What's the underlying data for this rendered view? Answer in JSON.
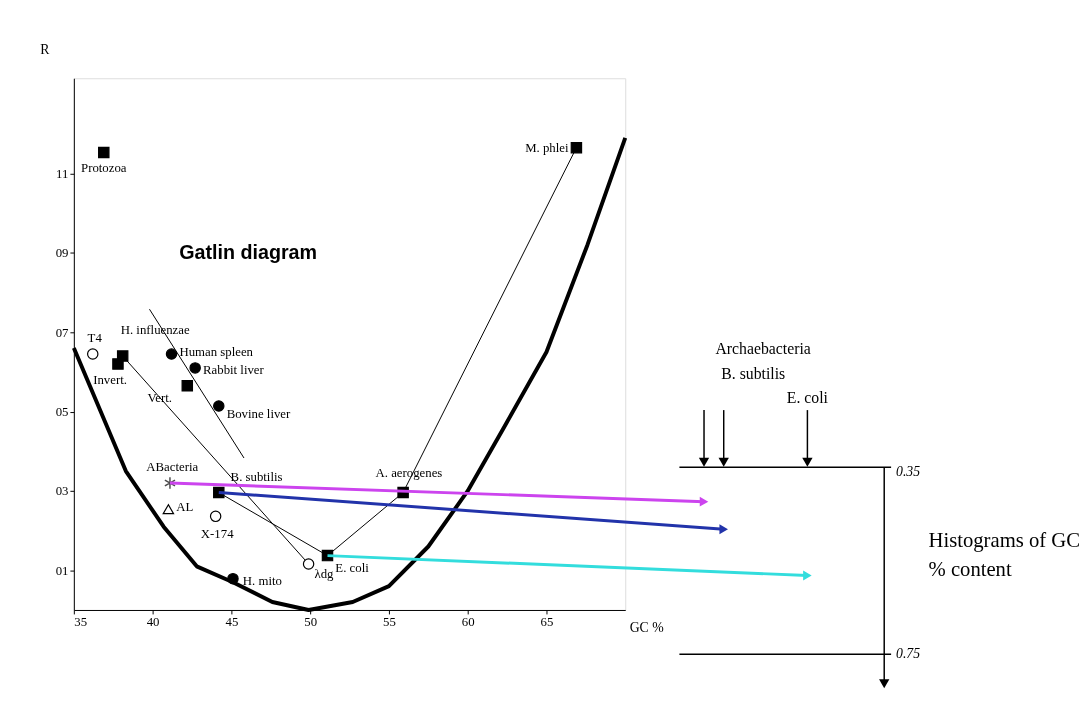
{
  "chart_data": {
    "type": "scatter",
    "title": "Gatlin diagram",
    "xlabel": "GC %",
    "ylabel": "R",
    "xlim": [
      35,
      70
    ],
    "ylim": [
      0,
      13.4
    ],
    "xticks": [
      35,
      40,
      45,
      50,
      55,
      60,
      65
    ],
    "yticks": [
      {
        "value": 1,
        "label": "01"
      },
      {
        "value": 3,
        "label": "03"
      },
      {
        "value": 5,
        "label": "05"
      },
      {
        "value": 7,
        "label": "07"
      },
      {
        "value": 9,
        "label": "09"
      },
      11
    ],
    "grid": false,
    "series": [
      {
        "type": "line",
        "marker": "none",
        "color": "#000000",
        "x": [
          35,
          38.3,
          40.7,
          42.8,
          45.1,
          47.6,
          49.9,
          52.7,
          55.0,
          57.5,
          60.0,
          62.3,
          65.0,
          67.6,
          70.0
        ],
        "values": [
          6.6,
          3.5,
          2.1,
          1.1,
          0.7,
          0.2,
          0.0,
          0.2,
          0.6,
          1.6,
          3.0,
          4.6,
          6.5,
          9.2,
          11.9
        ]
      },
      {
        "type": "line",
        "marker": "none",
        "color": "#000000",
        "x": [
          66.9,
          55.9,
          51.1
        ],
        "values": [
          11.65,
          2.96,
          1.37
        ]
      },
      {
        "type": "line",
        "marker": "none",
        "color": "#000000",
        "x": [
          38.1,
          49.9
        ],
        "values": [
          6.4,
          1.16
        ]
      },
      {
        "type": "line",
        "marker": "none",
        "color": "#000000",
        "x": [
          44.2,
          51.1
        ],
        "values": [
          2.96,
          1.37
        ]
      },
      {
        "type": "line",
        "marker": "none",
        "color": "#000000",
        "x": [
          39.8,
          45.8
        ],
        "values": [
          7.58,
          3.83
        ]
      },
      {
        "marker": "square",
        "color": "#000000",
        "x": [
          36.9,
          37.8,
          42.2,
          38.1,
          44.2,
          51.1,
          55.9,
          66.9
        ],
        "values": [
          11.53,
          6.2,
          5.65,
          6.4,
          2.96,
          1.37,
          2.96,
          11.65
        ]
      },
      {
        "marker": "circle",
        "color": "#000000",
        "x": [
          41.2,
          42.7,
          44.2,
          45.1
        ],
        "values": [
          6.45,
          6.1,
          5.14,
          0.79
        ]
      },
      {
        "marker": "circle",
        "color": "#ffffff",
        "x": [
          36.2,
          44.0,
          49.9
        ],
        "values": [
          6.45,
          2.36,
          1.16
        ]
      },
      {
        "marker": "cross",
        "color": "#000000",
        "x": [
          41.1
        ],
        "values": [
          3.2
        ]
      },
      {
        "marker": "triangle",
        "color": "#ffffff",
        "x": [
          41.0
        ],
        "values": [
          2.54
        ]
      }
    ],
    "annotations": [
      {
        "text": "Protozoa",
        "x": 36.9,
        "y": 11.53
      },
      {
        "text": "T4",
        "x": 36.2,
        "y": 6.45
      },
      {
        "text": "H. influenzae",
        "x": 38.1,
        "y": 6.4
      },
      {
        "text": "Invert.",
        "x": 37.8,
        "y": 6.2
      },
      {
        "text": "Human spleen",
        "x": 41.2,
        "y": 6.45
      },
      {
        "text": "Rabbit liver",
        "x": 42.7,
        "y": 6.1
      },
      {
        "text": "Vert.",
        "x": 42.2,
        "y": 5.65
      },
      {
        "text": "Bovine liver",
        "x": 44.2,
        "y": 5.14
      },
      {
        "text": "ABacteria",
        "x": 41.1,
        "y": 3.2
      },
      {
        "text": "AL",
        "x": 41.0,
        "y": 2.54
      },
      {
        "text": "B. subtilis",
        "x": 44.2,
        "y": 2.96
      },
      {
        "text": "X-174",
        "x": 44.0,
        "y": 2.36
      },
      {
        "text": "E. coli",
        "x": 51.1,
        "y": 1.37
      },
      {
        "text": "λdg",
        "x": 49.9,
        "y": 1.16
      },
      {
        "text": "H. mito",
        "x": 45.1,
        "y": 0.79
      },
      {
        "text": "A. aerogenes",
        "x": 55.9,
        "y": 2.96
      },
      {
        "text": "M. phlei",
        "x": 66.9,
        "y": 11.65
      },
      "Archaebacteria",
      "B. subtilis",
      "E. coli",
      "0.35",
      "0.75",
      "Histograms of GC % content"
    ]
  }
}
